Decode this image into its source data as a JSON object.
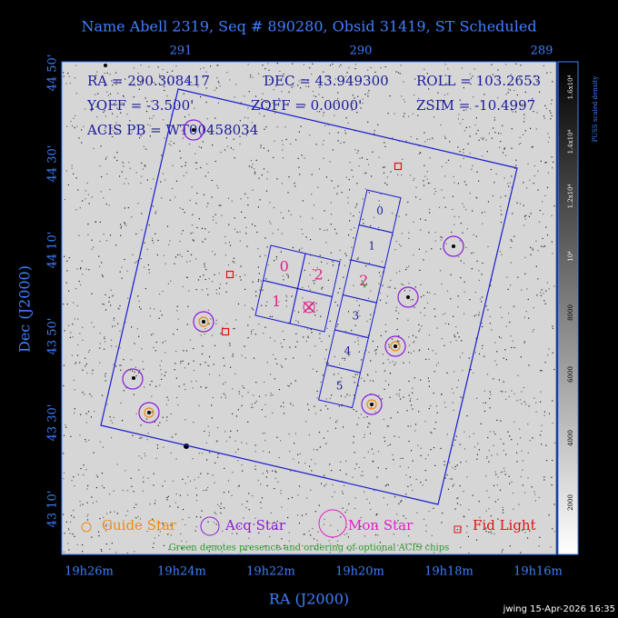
{
  "title": "Name Abell 2319, Seq # 890280, Obsid 31419, ST Scheduled",
  "header": {
    "ra": "RA = 290.308417",
    "dec": "DEC = 43.949300",
    "roll": "ROLL = 103.2653",
    "yoff": "YOFF = -3.500'",
    "zoff": "ZOFF = 0.0000'",
    "zsim": "ZSIM = -10.4997",
    "acis_pb": "ACIS PB = WT00458034"
  },
  "top_axis": [
    "291",
    "290",
    "289"
  ],
  "left_axis": [
    "44 50'",
    "44 30'",
    "44 10'",
    "43 50'",
    "43 30'",
    "43 10'"
  ],
  "bottom_axis": [
    "19h26m",
    "19h24m",
    "19h22m",
    "19h20m",
    "19h18m",
    "19h16m"
  ],
  "x_label": "RA (J2000)",
  "y_label": "Dec (J2000)",
  "i_chips": [
    "0",
    "2",
    "1"
  ],
  "s_chips": [
    "0",
    "1",
    "2",
    "3",
    "4",
    "5"
  ],
  "legend": [
    "Guide Star",
    "Acq Star",
    "Mon Star",
    "Fid Light"
  ],
  "note": "Green denotes presence and ordering of optional ACIS chips",
  "colorbar": {
    "ticks": [
      "2000",
      "4000",
      "6000",
      "8000",
      "10⁴",
      "1.2x10⁴",
      "1.4x10⁴",
      "1.6x10⁴"
    ],
    "label": "PUSS scaled density"
  },
  "footer": "jwing 15-Apr-2026 16:35"
}
